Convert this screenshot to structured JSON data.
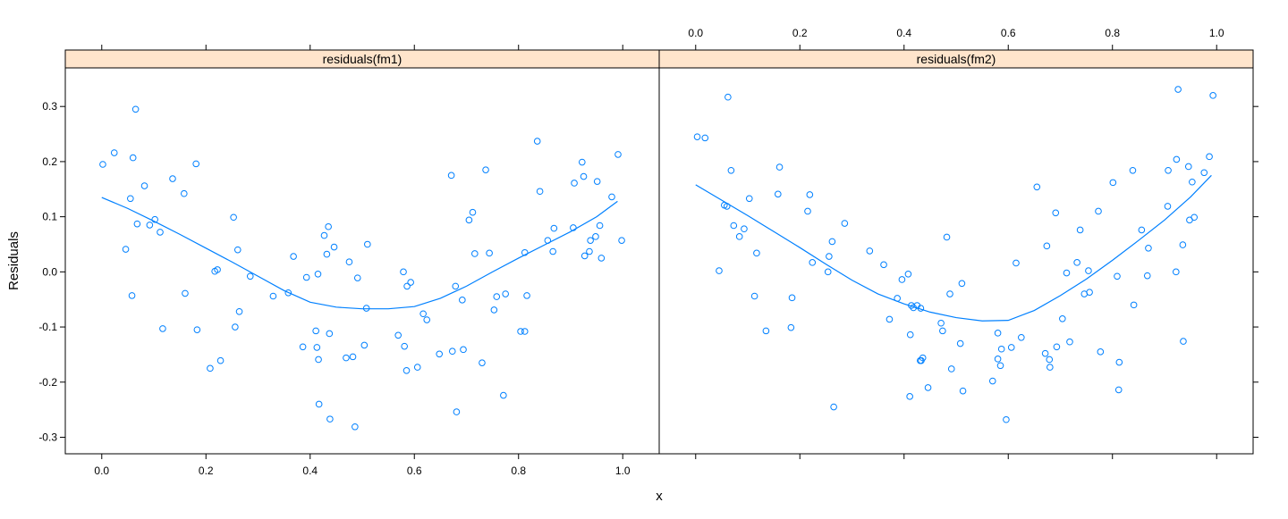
{
  "chart_data": {
    "type": "scatter",
    "xlabel": "x",
    "ylabel": "Residuals",
    "xlim": [
      -0.07,
      1.07
    ],
    "ylim": [
      -0.33,
      0.37
    ],
    "x_ticks": [
      0.0,
      0.2,
      0.4,
      0.6,
      0.8,
      1.0
    ],
    "x_tick_labels": [
      "0.0",
      "0.2",
      "0.4",
      "0.6",
      "0.8",
      "1.0"
    ],
    "y_ticks": [
      -0.3,
      -0.2,
      -0.1,
      0.0,
      0.1,
      0.2,
      0.3
    ],
    "y_tick_labels": [
      "-0.3",
      "-0.2",
      "-0.1",
      "0.0",
      "0.1",
      "0.2",
      "0.3"
    ],
    "colors": {
      "points": "#0080ff",
      "smooth": "#0080ff",
      "strip": "#ffe5cc",
      "frame": "#000000"
    },
    "panels": [
      {
        "title": "residuals(fm1)",
        "x_tick_labels_position": "bottom",
        "points": [
          [
            0.002,
            0.195
          ],
          [
            0.024,
            0.216
          ],
          [
            0.046,
            0.041
          ],
          [
            0.055,
            0.133
          ],
          [
            0.058,
            -0.043
          ],
          [
            0.06,
            0.207
          ],
          [
            0.065,
            0.295
          ],
          [
            0.068,
            0.087
          ],
          [
            0.082,
            0.156
          ],
          [
            0.092,
            0.085
          ],
          [
            0.102,
            0.095
          ],
          [
            0.112,
            0.072
          ],
          [
            0.117,
            -0.103
          ],
          [
            0.136,
            0.169
          ],
          [
            0.158,
            0.142
          ],
          [
            0.16,
            -0.039
          ],
          [
            0.181,
            0.196
          ],
          [
            0.183,
            -0.105
          ],
          [
            0.208,
            -0.175
          ],
          [
            0.217,
            0.001
          ],
          [
            0.222,
            0.004
          ],
          [
            0.228,
            -0.161
          ],
          [
            0.253,
            0.099
          ],
          [
            0.256,
            -0.1
          ],
          [
            0.261,
            0.04
          ],
          [
            0.264,
            -0.072
          ],
          [
            0.285,
            -0.008
          ],
          [
            0.329,
            -0.044
          ],
          [
            0.358,
            -0.038
          ],
          [
            0.368,
            0.028
          ],
          [
            0.386,
            -0.136
          ],
          [
            0.393,
            -0.01
          ],
          [
            0.411,
            -0.107
          ],
          [
            0.413,
            -0.137
          ],
          [
            0.415,
            -0.004
          ],
          [
            0.416,
            -0.159
          ],
          [
            0.417,
            -0.24
          ],
          [
            0.427,
            0.066
          ],
          [
            0.432,
            0.032
          ],
          [
            0.435,
            0.082
          ],
          [
            0.437,
            -0.112
          ],
          [
            0.438,
            -0.267
          ],
          [
            0.446,
            0.045
          ],
          [
            0.469,
            -0.156
          ],
          [
            0.475,
            0.018
          ],
          [
            0.482,
            -0.154
          ],
          [
            0.486,
            -0.281
          ],
          [
            0.491,
            -0.011
          ],
          [
            0.504,
            -0.133
          ],
          [
            0.508,
            -0.066
          ],
          [
            0.51,
            0.05
          ],
          [
            0.569,
            -0.115
          ],
          [
            0.579,
            0.0
          ],
          [
            0.581,
            -0.135
          ],
          [
            0.585,
            -0.179
          ],
          [
            0.586,
            -0.026
          ],
          [
            0.593,
            -0.019
          ],
          [
            0.606,
            -0.173
          ],
          [
            0.617,
            -0.076
          ],
          [
            0.624,
            -0.087
          ],
          [
            0.648,
            -0.149
          ],
          [
            0.671,
            0.175
          ],
          [
            0.673,
            -0.144
          ],
          [
            0.679,
            -0.026
          ],
          [
            0.681,
            -0.254
          ],
          [
            0.692,
            -0.051
          ],
          [
            0.694,
            -0.141
          ],
          [
            0.705,
            0.094
          ],
          [
            0.712,
            0.108
          ],
          [
            0.716,
            0.033
          ],
          [
            0.73,
            -0.165
          ],
          [
            0.737,
            0.185
          ],
          [
            0.744,
            0.034
          ],
          [
            0.753,
            -0.069
          ],
          [
            0.758,
            -0.045
          ],
          [
            0.771,
            -0.224
          ],
          [
            0.775,
            -0.04
          ],
          [
            0.804,
            -0.108
          ],
          [
            0.812,
            0.035
          ],
          [
            0.812,
            -0.108
          ],
          [
            0.816,
            -0.043
          ],
          [
            0.836,
            0.237
          ],
          [
            0.841,
            0.146
          ],
          [
            0.856,
            0.057
          ],
          [
            0.866,
            0.037
          ],
          [
            0.868,
            0.079
          ],
          [
            0.905,
            0.08
          ],
          [
            0.907,
            0.161
          ],
          [
            0.922,
            0.199
          ],
          [
            0.925,
            0.173
          ],
          [
            0.927,
            0.029
          ],
          [
            0.936,
            0.037
          ],
          [
            0.938,
            0.057
          ],
          [
            0.948,
            0.064
          ],
          [
            0.951,
            0.164
          ],
          [
            0.956,
            0.084
          ],
          [
            0.959,
            0.025
          ],
          [
            0.979,
            0.136
          ],
          [
            0.991,
            0.213
          ],
          [
            0.998,
            0.057
          ]
        ],
        "smooth": [
          [
            0.0,
            0.135
          ],
          [
            0.05,
            0.115
          ],
          [
            0.1,
            0.092
          ],
          [
            0.15,
            0.068
          ],
          [
            0.2,
            0.043
          ],
          [
            0.25,
            0.018
          ],
          [
            0.3,
            -0.008
          ],
          [
            0.35,
            -0.034
          ],
          [
            0.4,
            -0.055
          ],
          [
            0.45,
            -0.064
          ],
          [
            0.5,
            -0.067
          ],
          [
            0.55,
            -0.067
          ],
          [
            0.6,
            -0.063
          ],
          [
            0.65,
            -0.048
          ],
          [
            0.7,
            -0.026
          ],
          [
            0.75,
            0.0
          ],
          [
            0.8,
            0.025
          ],
          [
            0.85,
            0.049
          ],
          [
            0.9,
            0.073
          ],
          [
            0.95,
            0.1
          ],
          [
            0.99,
            0.128
          ]
        ]
      },
      {
        "title": "residuals(fm2)",
        "x_tick_labels_position": "top",
        "points": [
          [
            0.003,
            0.245
          ],
          [
            0.018,
            0.243
          ],
          [
            0.045,
            0.002
          ],
          [
            0.055,
            0.121
          ],
          [
            0.06,
            0.119
          ],
          [
            0.062,
            0.317
          ],
          [
            0.068,
            0.184
          ],
          [
            0.073,
            0.084
          ],
          [
            0.084,
            0.064
          ],
          [
            0.093,
            0.078
          ],
          [
            0.103,
            0.133
          ],
          [
            0.113,
            -0.044
          ],
          [
            0.117,
            0.034
          ],
          [
            0.135,
            -0.107
          ],
          [
            0.158,
            0.141
          ],
          [
            0.161,
            0.19
          ],
          [
            0.183,
            -0.101
          ],
          [
            0.185,
            -0.047
          ],
          [
            0.215,
            0.11
          ],
          [
            0.219,
            0.14
          ],
          [
            0.224,
            0.017
          ],
          [
            0.254,
            0.0
          ],
          [
            0.256,
            0.028
          ],
          [
            0.262,
            0.055
          ],
          [
            0.265,
            -0.245
          ],
          [
            0.286,
            0.088
          ],
          [
            0.334,
            0.038
          ],
          [
            0.361,
            0.013
          ],
          [
            0.372,
            -0.086
          ],
          [
            0.387,
            -0.048
          ],
          [
            0.396,
            -0.014
          ],
          [
            0.408,
            -0.004
          ],
          [
            0.411,
            -0.226
          ],
          [
            0.412,
            -0.114
          ],
          [
            0.414,
            -0.061
          ],
          [
            0.418,
            -0.065
          ],
          [
            0.425,
            -0.061
          ],
          [
            0.431,
            -0.161
          ],
          [
            0.432,
            -0.066
          ],
          [
            0.433,
            -0.161
          ],
          [
            0.436,
            -0.156
          ],
          [
            0.446,
            -0.21
          ],
          [
            0.471,
            -0.093
          ],
          [
            0.474,
            -0.107
          ],
          [
            0.482,
            0.063
          ],
          [
            0.488,
            -0.04
          ],
          [
            0.491,
            -0.176
          ],
          [
            0.508,
            -0.13
          ],
          [
            0.511,
            -0.021
          ],
          [
            0.513,
            -0.216
          ],
          [
            0.57,
            -0.198
          ],
          [
            0.58,
            -0.111
          ],
          [
            0.58,
            -0.158
          ],
          [
            0.585,
            -0.17
          ],
          [
            0.587,
            -0.14
          ],
          [
            0.596,
            -0.268
          ],
          [
            0.606,
            -0.137
          ],
          [
            0.615,
            0.016
          ],
          [
            0.625,
            -0.119
          ],
          [
            0.655,
            0.154
          ],
          [
            0.671,
            -0.148
          ],
          [
            0.674,
            0.047
          ],
          [
            0.679,
            -0.159
          ],
          [
            0.68,
            -0.173
          ],
          [
            0.691,
            0.107
          ],
          [
            0.693,
            -0.136
          ],
          [
            0.704,
            -0.085
          ],
          [
            0.712,
            -0.002
          ],
          [
            0.718,
            -0.127
          ],
          [
            0.732,
            0.017
          ],
          [
            0.738,
            0.076
          ],
          [
            0.746,
            -0.04
          ],
          [
            0.754,
            0.002
          ],
          [
            0.756,
            -0.037
          ],
          [
            0.773,
            0.11
          ],
          [
            0.777,
            -0.145
          ],
          [
            0.801,
            0.162
          ],
          [
            0.809,
            -0.008
          ],
          [
            0.812,
            -0.214
          ],
          [
            0.813,
            -0.164
          ],
          [
            0.839,
            0.184
          ],
          [
            0.841,
            -0.06
          ],
          [
            0.856,
            0.076
          ],
          [
            0.867,
            -0.007
          ],
          [
            0.869,
            0.043
          ],
          [
            0.906,
            0.119
          ],
          [
            0.907,
            0.184
          ],
          [
            0.922,
            0.0
          ],
          [
            0.923,
            0.204
          ],
          [
            0.926,
            0.331
          ],
          [
            0.935,
            0.049
          ],
          [
            0.936,
            -0.126
          ],
          [
            0.946,
            0.191
          ],
          [
            0.948,
            0.094
          ],
          [
            0.953,
            0.163
          ],
          [
            0.957,
            0.099
          ],
          [
            0.976,
            0.18
          ],
          [
            0.986,
            0.209
          ],
          [
            0.993,
            0.32
          ]
        ],
        "smooth": [
          [
            0.0,
            0.158
          ],
          [
            0.05,
            0.13
          ],
          [
            0.1,
            0.102
          ],
          [
            0.15,
            0.073
          ],
          [
            0.2,
            0.044
          ],
          [
            0.25,
            0.014
          ],
          [
            0.3,
            -0.015
          ],
          [
            0.35,
            -0.04
          ],
          [
            0.4,
            -0.058
          ],
          [
            0.45,
            -0.073
          ],
          [
            0.5,
            -0.083
          ],
          [
            0.55,
            -0.089
          ],
          [
            0.6,
            -0.088
          ],
          [
            0.65,
            -0.07
          ],
          [
            0.7,
            -0.043
          ],
          [
            0.75,
            -0.013
          ],
          [
            0.8,
            0.021
          ],
          [
            0.85,
            0.057
          ],
          [
            0.9,
            0.094
          ],
          [
            0.95,
            0.136
          ],
          [
            0.99,
            0.175
          ]
        ]
      }
    ]
  }
}
